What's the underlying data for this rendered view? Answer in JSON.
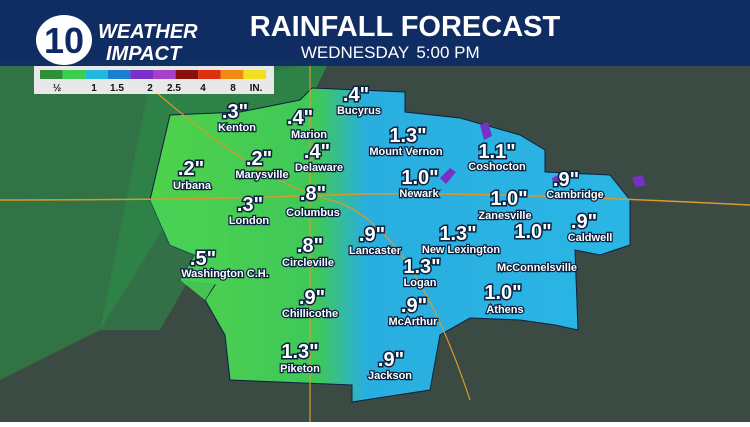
{
  "logo": {
    "number": "10",
    "line1": "WEATHER",
    "line2": "IMPACT"
  },
  "header": {
    "title": "RAINFALL FORECAST",
    "day": "WEDNESDAY",
    "time": "5:00 PM"
  },
  "legend": {
    "labels": [
      "½",
      "1",
      "1.5",
      "2",
      "2.5",
      "4",
      "8",
      "IN."
    ],
    "colors": [
      "#2f8f3a",
      "#3ccf4f",
      "#20b8e0",
      "#1a7fd0",
      "#7a30c8",
      "#a540c8",
      "#8a1010",
      "#e03010",
      "#f08a10",
      "#f0e020"
    ]
  },
  "cities": [
    {
      "amount": ".3\"",
      "name": "Kenton"
    },
    {
      "amount": ".4\"",
      "name": "Marion"
    },
    {
      "amount": ".4\"",
      "name": "Bucyrus"
    },
    {
      "amount": "1.3\"",
      "name": "Mount Vernon"
    },
    {
      "amount": "1.1\"",
      "name": "Coshocton"
    },
    {
      "amount": ".2\"",
      "name": "Urbana"
    },
    {
      "amount": ".2\"",
      "name": "Marysville"
    },
    {
      "amount": ".4\"",
      "name": "Delaware"
    },
    {
      "amount": "1.0\"",
      "name": "Newark"
    },
    {
      "amount": ".9\"",
      "name": "Cambridge"
    },
    {
      "amount": ".8\"",
      "name": "Columbus"
    },
    {
      "amount": ".3\"",
      "name": "London"
    },
    {
      "amount": "1.0\"",
      "name": "Zanesville"
    },
    {
      "amount": ".9\"",
      "name": "Caldwell"
    },
    {
      "amount": ".8\"",
      "name": "Circleville"
    },
    {
      "amount": ".9\"",
      "name": "Lancaster"
    },
    {
      "amount": "1.3\"",
      "name": "New Lexington"
    },
    {
      "amount": "1.0\"",
      "name": "McConnelsville"
    },
    {
      "amount": ".5\"",
      "name": "Washington C.H."
    },
    {
      "amount": "1.3\"",
      "name": "Logan"
    },
    {
      "amount": ".9\"",
      "name": "Chillicothe"
    },
    {
      "amount": ".9\"",
      "name": "McArthur"
    },
    {
      "amount": "1.0\"",
      "name": "Athens"
    },
    {
      "amount": "1.3\"",
      "name": "Piketon"
    },
    {
      "amount": ".9\"",
      "name": "Jackson"
    }
  ]
}
